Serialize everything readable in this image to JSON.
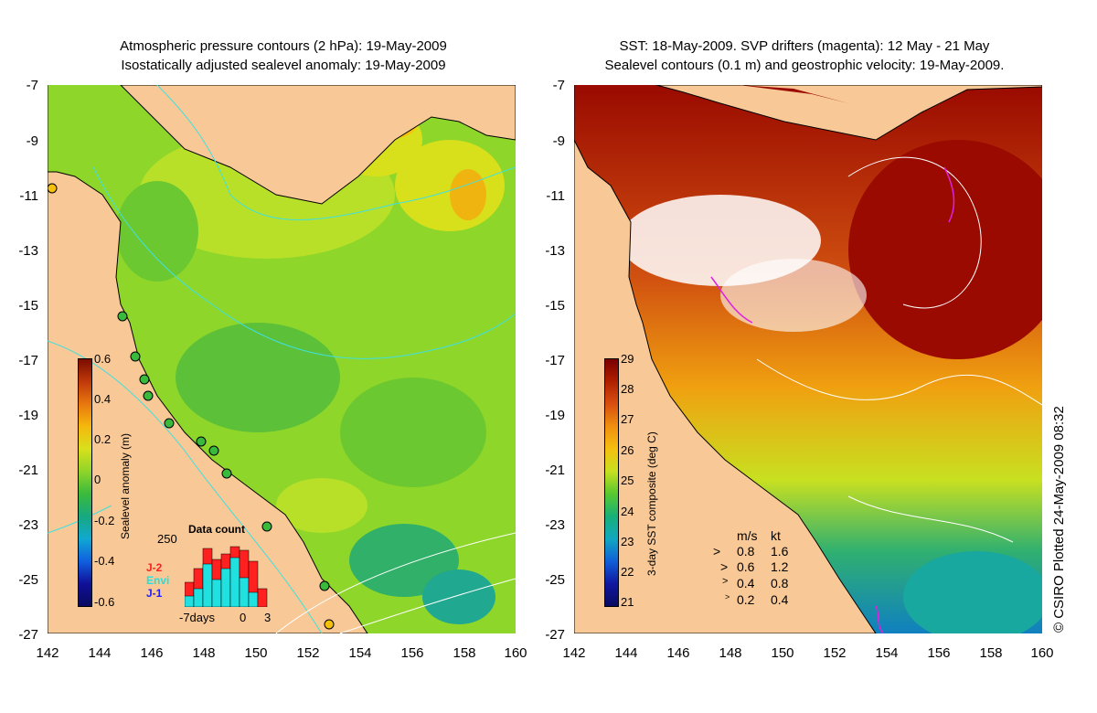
{
  "left_panel": {
    "title_line1": "Atmospheric pressure contours (2 hPa): 19-May-2009",
    "title_line2": "Isostatically adjusted sealevel anomaly: 19-May-2009",
    "colorbar": {
      "label": "Sealevel anomaly (m)",
      "ticks": [
        "0.6",
        "0.4",
        "0.2",
        "0",
        "-0.2",
        "-0.4",
        "-0.6"
      ]
    },
    "data_count": {
      "title": "Data count",
      "ymax_label": "250",
      "series": [
        {
          "name": "J-2",
          "color": "#ff2020"
        },
        {
          "name": "Envi",
          "color": "#20e0e0"
        },
        {
          "name": "J-1",
          "color": "#2020ff"
        }
      ],
      "x_labels": [
        "-7days",
        "0",
        "3"
      ]
    }
  },
  "right_panel": {
    "title_line1": "SST: 18-May-2009. SVP drifters (magenta): 12 May - 21 May",
    "title_line2": "Sealevel contours (0.1 m) and geostrophic velocity: 19-May-2009.",
    "colorbar": {
      "label": "3-day SST composite (deg C)",
      "ticks": [
        "29",
        "28",
        "27",
        "26",
        "25",
        "24",
        "23",
        "22",
        "21"
      ]
    },
    "velocity_legend": {
      "header_ms": "m/s",
      "header_kt": "kt",
      "rows": [
        {
          "ms": "0.8",
          "kt": "1.6"
        },
        {
          "ms": "0.6",
          "kt": "1.2"
        },
        {
          "ms": "0.4",
          "kt": "0.8"
        },
        {
          "ms": "0.2",
          "kt": "0.4"
        }
      ]
    }
  },
  "axes": {
    "y_ticks": [
      "-7",
      "-9",
      "-11",
      "-13",
      "-15",
      "-17",
      "-19",
      "-21",
      "-23",
      "-25",
      "-27"
    ],
    "x_ticks": [
      "142",
      "144",
      "146",
      "148",
      "150",
      "152",
      "154",
      "156",
      "158",
      "160"
    ]
  },
  "credit": "© CSIRO Plotted 24-May-2009 08:32",
  "colors": {
    "land": "#f8c896",
    "ocean_green": "#8ed62a",
    "sst_warm": "#9a0a00",
    "contour_cyan": "#40e0e0",
    "drifter_magenta": "#e020e0"
  }
}
